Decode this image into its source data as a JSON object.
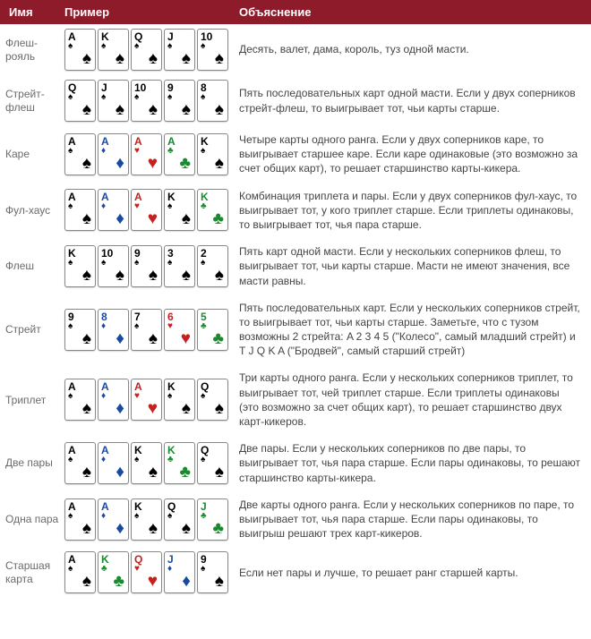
{
  "suit_glyphs": {
    "S": "♠",
    "H": "♥",
    "D": "♦",
    "C": "♣"
  },
  "suit_color_class": {
    "S": "black",
    "H": "red",
    "D": "blue",
    "C": "green"
  },
  "header": {
    "name": "Имя",
    "example": "Пример",
    "desc": "Объяснение"
  },
  "hands": [
    {
      "name": "Флеш-рояль",
      "cards": [
        {
          "rank": "A",
          "suit": "S"
        },
        {
          "rank": "K",
          "suit": "S"
        },
        {
          "rank": "Q",
          "suit": "S"
        },
        {
          "rank": "J",
          "suit": "S"
        },
        {
          "rank": "10",
          "suit": "S"
        }
      ],
      "desc": "Десять, валет, дама, король, туз одной масти."
    },
    {
      "name": "Стрейт-флеш",
      "cards": [
        {
          "rank": "Q",
          "suit": "S"
        },
        {
          "rank": "J",
          "suit": "S"
        },
        {
          "rank": "10",
          "suit": "S"
        },
        {
          "rank": "9",
          "suit": "S"
        },
        {
          "rank": "8",
          "suit": "S"
        }
      ],
      "desc": "Пять последовательных карт одной масти. Если у двух соперников стрейт-флеш, то выигрывает тот, чьи карты старше."
    },
    {
      "name": "Каре",
      "cards": [
        {
          "rank": "A",
          "suit": "S"
        },
        {
          "rank": "A",
          "suit": "D"
        },
        {
          "rank": "A",
          "suit": "H"
        },
        {
          "rank": "A",
          "suit": "C"
        },
        {
          "rank": "K",
          "suit": "S"
        }
      ],
      "desc": "Четыре карты одного ранга. Если у двух соперников каре, то выигрывает старшее каре. Если каре одинаковые (это возможно за счет общих карт), то решает старшинство карты-кикера."
    },
    {
      "name": "Фул-хаус",
      "cards": [
        {
          "rank": "A",
          "suit": "S"
        },
        {
          "rank": "A",
          "suit": "D"
        },
        {
          "rank": "A",
          "suit": "H"
        },
        {
          "rank": "K",
          "suit": "S"
        },
        {
          "rank": "K",
          "suit": "C"
        }
      ],
      "desc": "Комбинация триплета и пары. Если у двух соперников фул-хаус, то выигрывает тот, у кого триплет старше. Если триплеты одинаковы, то выигрывает тот, чья пара старше."
    },
    {
      "name": "Флеш",
      "cards": [
        {
          "rank": "K",
          "suit": "S"
        },
        {
          "rank": "10",
          "suit": "S"
        },
        {
          "rank": "9",
          "suit": "S"
        },
        {
          "rank": "3",
          "suit": "S"
        },
        {
          "rank": "2",
          "suit": "S"
        }
      ],
      "desc": "Пять карт одной масти. Если у нескольких соперников флеш, то выигрывает тот, чьи карты старше. Масти не имеют значения, все масти равны."
    },
    {
      "name": "Стрейт",
      "cards": [
        {
          "rank": "9",
          "suit": "S"
        },
        {
          "rank": "8",
          "suit": "D"
        },
        {
          "rank": "7",
          "suit": "S"
        },
        {
          "rank": "6",
          "suit": "H"
        },
        {
          "rank": "5",
          "suit": "C"
        }
      ],
      "desc": "Пять последовательных карт. Если у нескольких соперников стрейт, то выигрывает тот, чьи карты старше. Заметьте, что с тузом возможны 2 стрейта: A 2 3 4 5 (\"Колесо\", самый младший стрейт) и T J Q K A (\"Бродвей\", самый старший стрейт)"
    },
    {
      "name": "Триплет",
      "cards": [
        {
          "rank": "A",
          "suit": "S"
        },
        {
          "rank": "A",
          "suit": "D"
        },
        {
          "rank": "A",
          "suit": "H"
        },
        {
          "rank": "K",
          "suit": "S"
        },
        {
          "rank": "Q",
          "suit": "S"
        }
      ],
      "desc": "Три карты одного ранга. Если у нескольких соперников триплет, то выигрывает тот, чей триплет старше. Если триплеты одинаковы (это возможно за счет общих карт), то решает старшинство двух карт-кикеров."
    },
    {
      "name": "Две пары",
      "cards": [
        {
          "rank": "A",
          "suit": "S"
        },
        {
          "rank": "A",
          "suit": "D"
        },
        {
          "rank": "K",
          "suit": "S"
        },
        {
          "rank": "K",
          "suit": "C"
        },
        {
          "rank": "Q",
          "suit": "S"
        }
      ],
      "desc": "Две пары. Если у нескольких соперников по две пары, то выигрывает тот, чья пара старше. Если пары одинаковы, то решают старшинство карты-кикера."
    },
    {
      "name": "Одна пара",
      "cards": [
        {
          "rank": "A",
          "suit": "S"
        },
        {
          "rank": "A",
          "suit": "D"
        },
        {
          "rank": "K",
          "suit": "S"
        },
        {
          "rank": "Q",
          "suit": "S"
        },
        {
          "rank": "J",
          "suit": "C"
        }
      ],
      "desc": "Две карты одного ранга. Если у нескольких соперников по паре, то выигрывает тот, чья пара старше. Если пары одинаковы, то выигрыш решают трех карт-кикеров."
    },
    {
      "name": "Старшая карта",
      "cards": [
        {
          "rank": "A",
          "suit": "S"
        },
        {
          "rank": "K",
          "suit": "C"
        },
        {
          "rank": "Q",
          "suit": "H"
        },
        {
          "rank": "J",
          "suit": "D"
        },
        {
          "rank": "9",
          "suit": "S"
        }
      ],
      "desc": "Если нет пары и лучше, то решает ранг старшей карты."
    }
  ]
}
